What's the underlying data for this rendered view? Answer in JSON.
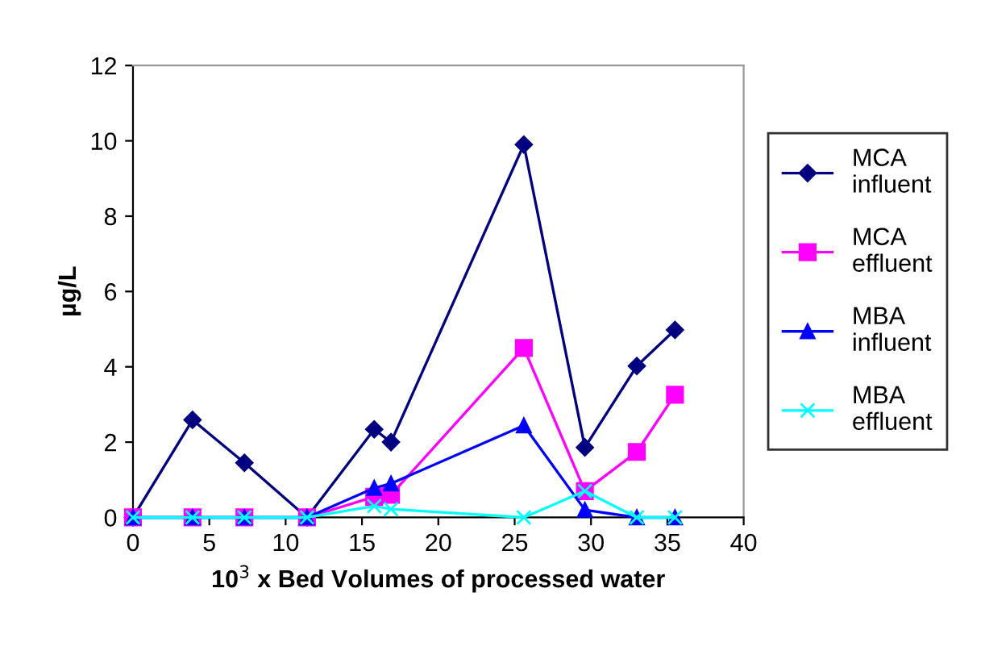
{
  "chart_data": {
    "type": "line",
    "xlabel": "10$^{3}$ x Bed Volumes of processed water",
    "ylabel": "µg/L",
    "x": [
      0,
      3.9,
      7.3,
      11.4,
      15.8,
      16.9,
      25.6,
      29.6,
      33.0,
      35.5
    ],
    "series": [
      {
        "name": "MCA\ninfluent",
        "color": "#000080",
        "marker": "diamond",
        "values": [
          0,
          2.59,
          1.45,
          0,
          2.34,
          2.0,
          9.9,
          1.86,
          4.02,
          4.98
        ]
      },
      {
        "name": "MCA\neffluent",
        "color": "#ff00ff",
        "marker": "square",
        "values": [
          0,
          0,
          0,
          0,
          0.55,
          0.6,
          4.5,
          0.7,
          1.74,
          3.26
        ]
      },
      {
        "name": "MBA\ninfluent",
        "color": "#0000ff",
        "marker": "triangle",
        "values": [
          0,
          0,
          0,
          0,
          0.78,
          0.9,
          2.44,
          0.2,
          0,
          0
        ]
      },
      {
        "name": "MBA\neffluent",
        "color": "#00ffff",
        "marker": "cross",
        "values": [
          0,
          0,
          0,
          0,
          0.3,
          0.22,
          0,
          0.7,
          0,
          0
        ]
      }
    ],
    "xlim": [
      0,
      40
    ],
    "xticks": [
      0,
      5,
      10,
      15,
      20,
      25,
      30,
      35,
      40
    ],
    "ylim": [
      0,
      12
    ],
    "yticks": [
      0,
      2,
      4,
      6,
      8,
      10,
      12
    ],
    "grid": false,
    "legend": "right"
  }
}
